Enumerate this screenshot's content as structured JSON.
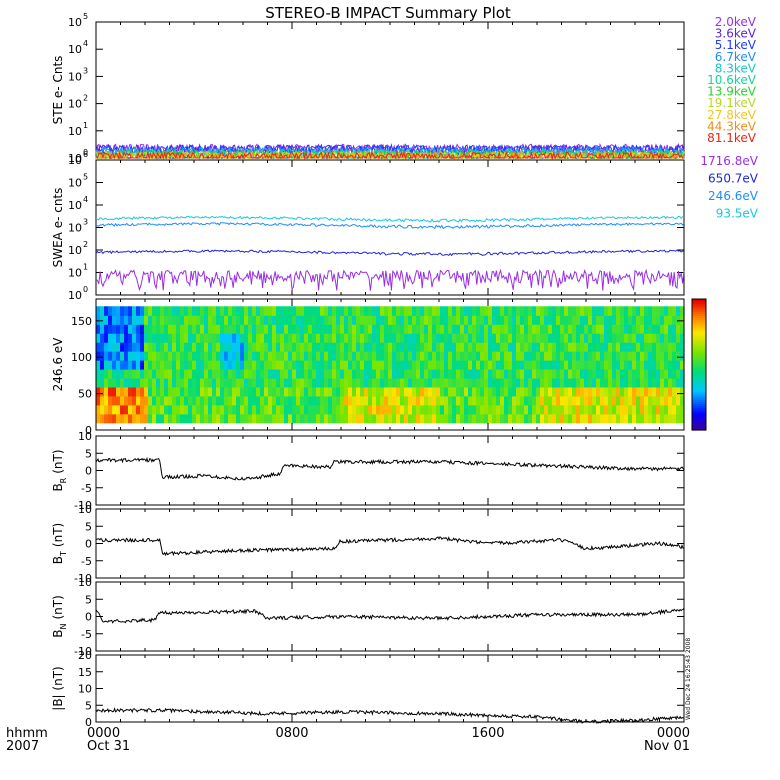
{
  "title": "STEREO-B IMPACT Summary Plot",
  "side_stamp": "Wed Dec 24 16:25:43 2008",
  "chart_data": [
    {
      "type": "line",
      "id": "ste",
      "ylabel": "STE e- Cnts",
      "yscale": "log",
      "ylim": [
        1,
        100000
      ],
      "ytick_exponents": [
        "0",
        "1",
        "2",
        "3",
        "4",
        "5"
      ],
      "series": [
        {
          "name": "2.0keV",
          "color": "#9a2ee6",
          "base": 2
        },
        {
          "name": "3.6keV",
          "color": "#5a28d2",
          "base": 1.9
        },
        {
          "name": "5.1keV",
          "color": "#1e3cff",
          "base": 1.8
        },
        {
          "name": "6.7keV",
          "color": "#1e8cff",
          "base": 1.6
        },
        {
          "name": "8.3keV",
          "color": "#19c8c8",
          "base": 1.4
        },
        {
          "name": "10.6keV",
          "color": "#19d296",
          "base": 1.2
        },
        {
          "name": "13.9keV",
          "color": "#2ad22a",
          "base": 1.1
        },
        {
          "name": "19.1keV",
          "color": "#b4dc1e",
          "base": 1.05
        },
        {
          "name": "27.8keV",
          "color": "#f0c81e",
          "base": 1.02
        },
        {
          "name": "44.3keV",
          "color": "#f08c1e",
          "base": 1.01
        },
        {
          "name": "81.1keV",
          "color": "#e62814",
          "base": 1.0
        }
      ]
    },
    {
      "type": "line",
      "id": "swea",
      "ylabel": "SWEA e- cnts",
      "yscale": "log",
      "ylim": [
        1,
        1000000
      ],
      "ytick_exponents": [
        "0",
        "1",
        "2",
        "3",
        "4",
        "5",
        "6"
      ],
      "series": [
        {
          "name": "1716.8eV",
          "color": "#9a2ee6",
          "base": 5
        },
        {
          "name": "650.7eV",
          "color": "#1e28d2",
          "base": 80
        },
        {
          "name": "246.6eV",
          "color": "#1e8cff",
          "base": 1300
        },
        {
          "name": "93.5eV",
          "color": "#19c8dc",
          "base": 2500
        }
      ]
    },
    {
      "type": "heatmap",
      "id": "pad",
      "ylabel": "246.6 eV",
      "ylim": [
        0,
        180
      ],
      "yticks": [
        "0",
        "50",
        "100",
        "150"
      ],
      "colorbar": "rainbow"
    },
    {
      "type": "line",
      "id": "br",
      "ylabel": "B",
      "ylabel_sub": "R",
      "ylabel_unit": "(nT)",
      "ylim": [
        -10,
        10
      ],
      "yticks": [
        "-10",
        "-5",
        "0",
        "5",
        "10"
      ],
      "series": [
        {
          "name": "",
          "color": "#000000",
          "segments": [
            [
              0,
              3
            ],
            [
              2.6,
              3
            ],
            [
              2.7,
              -2
            ],
            [
              4.5,
              -1.5
            ],
            [
              6,
              -2.5
            ],
            [
              7.5,
              -1
            ],
            [
              7.7,
              1.5
            ],
            [
              9.6,
              1
            ],
            [
              9.7,
              2.5
            ],
            [
              14,
              2.5
            ],
            [
              18,
              1.5
            ],
            [
              22,
              0.5
            ],
            [
              24,
              0.5
            ]
          ]
        }
      ]
    },
    {
      "type": "line",
      "id": "bt",
      "ylabel": "B",
      "ylabel_sub": "T",
      "ylabel_unit": "(nT)",
      "ylim": [
        -10,
        10
      ],
      "yticks": [
        "-10",
        "-5",
        "0",
        "5",
        "10"
      ],
      "series": [
        {
          "name": "",
          "color": "#000000",
          "segments": [
            [
              0,
              1
            ],
            [
              2.6,
              1
            ],
            [
              2.7,
              -3
            ],
            [
              6,
              -2
            ],
            [
              9.8,
              -1.5
            ],
            [
              9.9,
              0.5
            ],
            [
              14,
              1.5
            ],
            [
              16,
              0
            ],
            [
              19,
              1
            ],
            [
              20,
              -1.5
            ],
            [
              23,
              0
            ],
            [
              24,
              -1
            ]
          ]
        }
      ]
    },
    {
      "type": "line",
      "id": "bn",
      "ylabel": "B",
      "ylabel_sub": "N",
      "ylabel_unit": "(nT)",
      "ylim": [
        -10,
        10
      ],
      "yticks": [
        "-10",
        "-5",
        "0",
        "5",
        "10"
      ],
      "series": [
        {
          "name": "",
          "color": "#000000",
          "segments": [
            [
              0,
              2
            ],
            [
              0.3,
              -1.5
            ],
            [
              2.4,
              -1
            ],
            [
              2.6,
              1
            ],
            [
              6.5,
              1.5
            ],
            [
              7,
              -0.5
            ],
            [
              10,
              0
            ],
            [
              14,
              -0.5
            ],
            [
              18,
              0.5
            ],
            [
              22,
              0.5
            ],
            [
              24,
              2
            ]
          ]
        }
      ]
    },
    {
      "type": "line",
      "id": "bmag",
      "ylabel": "|B| (nT)",
      "ylim": [
        0,
        20
      ],
      "yticks": [
        "0",
        "5",
        "10",
        "15",
        "20"
      ],
      "series": [
        {
          "name": "",
          "color": "#000000",
          "segments": [
            [
              0,
              3.5
            ],
            [
              2.6,
              3.5
            ],
            [
              7,
              2.5
            ],
            [
              10,
              3
            ],
            [
              14,
              2.5
            ],
            [
              18,
              1.5
            ],
            [
              20,
              0
            ],
            [
              22,
              0.5
            ],
            [
              24,
              1.5
            ]
          ]
        }
      ]
    }
  ],
  "x_axis": {
    "range_hours": [
      0,
      24
    ],
    "label_line1": "hhmm",
    "label_line2": "2007",
    "ticks": [
      {
        "hour": 0,
        "label": "0000",
        "sub": "Oct 31"
      },
      {
        "hour": 8,
        "label": "0800",
        "sub": ""
      },
      {
        "hour": 16,
        "label": "1600",
        "sub": ""
      },
      {
        "hour": 24,
        "label": "0000",
        "sub": "Nov 01"
      }
    ]
  }
}
